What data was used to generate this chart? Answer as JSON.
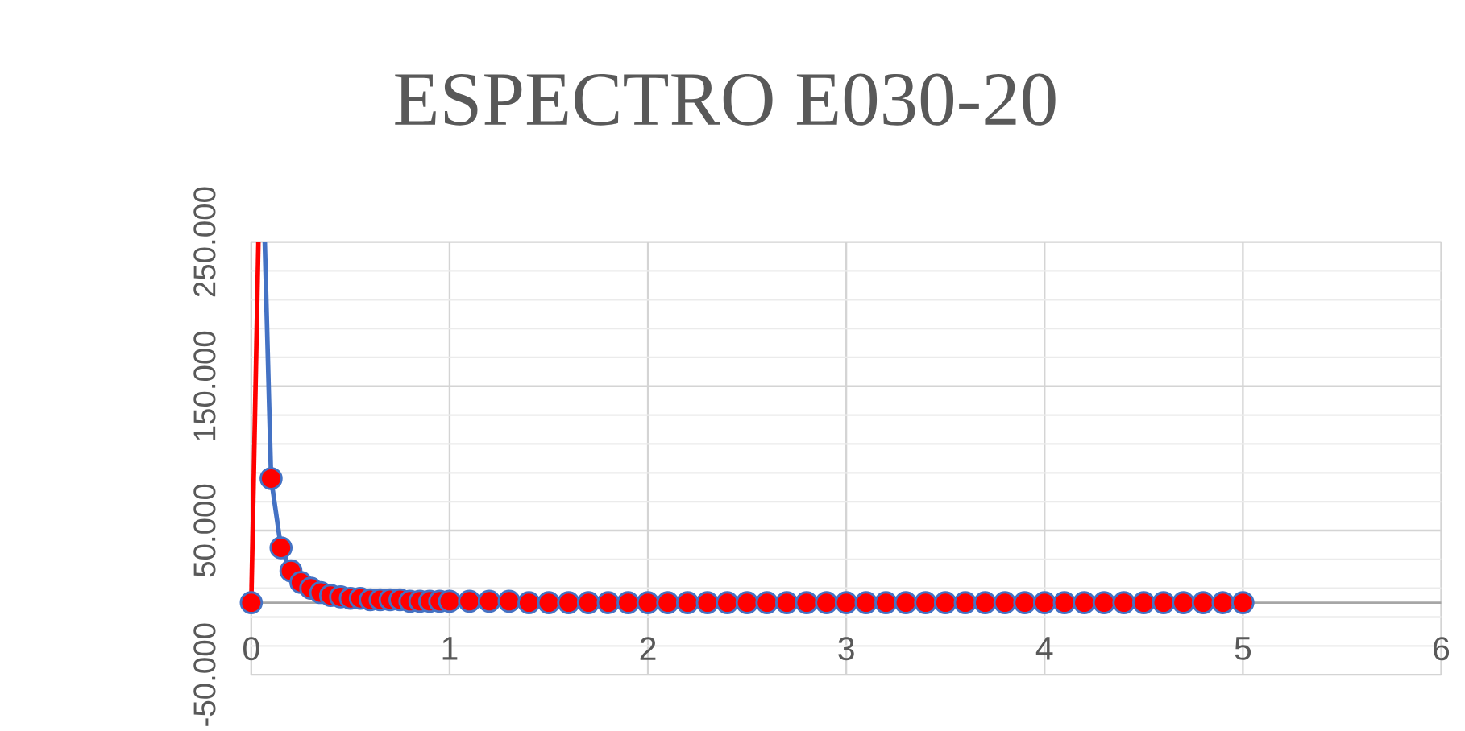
{
  "chart_data": {
    "type": "line",
    "title": "ESPECTRO E030-20",
    "xlim": [
      0,
      6
    ],
    "xticks": [
      0,
      1,
      2,
      3,
      4,
      5,
      6
    ],
    "ylim": [
      -50000,
      250000
    ],
    "yticks": [
      {
        "value": -50000,
        "label": "-50.000"
      },
      {
        "value": 50000,
        "label": "50.000"
      },
      {
        "value": 150000,
        "label": "150.000"
      },
      {
        "value": 250000,
        "label": "250.000"
      }
    ],
    "grid": true,
    "series": [
      {
        "color": "#ff0000",
        "x": [
          0,
          0.036
        ],
        "values": [
          0,
          250000
        ]
      },
      {
        "color": "#4472c4",
        "x": [
          0.068,
          0.1,
          0.15,
          0.2,
          0.25,
          0.3,
          0.35,
          0.4,
          0.45,
          0.5,
          0.55,
          0.6,
          0.65,
          0.7,
          0.75,
          0.8,
          0.85,
          0.9,
          0.95,
          1.0,
          1.1,
          1.2,
          1.3,
          1.4,
          1.5,
          1.6,
          1.7,
          1.8,
          1.9,
          2.0,
          2.1,
          2.2,
          2.3,
          2.4,
          2.5,
          2.6,
          2.7,
          2.8,
          2.9,
          3.0,
          3.1,
          3.2,
          3.3,
          3.4,
          3.5,
          3.6,
          3.7,
          3.8,
          3.9,
          4.0,
          4.1,
          4.2,
          4.3,
          4.4,
          4.5,
          4.6,
          4.7,
          4.8,
          4.9,
          5.0
        ],
        "values": [
          250000,
          86000,
          38000,
          22000,
          14000,
          10000,
          7000,
          5000,
          4000,
          3000,
          3000,
          2000,
          2000,
          2000,
          2000,
          1000,
          1000,
          1000,
          1000,
          1000,
          1000,
          1000,
          1000,
          0,
          0,
          0,
          0,
          0,
          0,
          0,
          0,
          0,
          0,
          0,
          0,
          0,
          0,
          0,
          0,
          0,
          0,
          0,
          0,
          0,
          0,
          0,
          0,
          0,
          0,
          0,
          0,
          0,
          0,
          0,
          0,
          0,
          0,
          0,
          0,
          0
        ]
      },
      {
        "type": "scatter",
        "color": "#ff0000",
        "marker": "circle",
        "x": [
          0,
          0.1,
          0.15,
          0.2,
          0.25,
          0.3,
          0.35,
          0.4,
          0.45,
          0.5,
          0.55,
          0.6,
          0.65,
          0.7,
          0.75,
          0.8,
          0.85,
          0.9,
          0.95,
          1.0,
          1.1,
          1.2,
          1.3,
          1.4,
          1.5,
          1.6,
          1.7,
          1.8,
          1.9,
          2.0,
          2.1,
          2.2,
          2.3,
          2.4,
          2.5,
          2.6,
          2.7,
          2.8,
          2.9,
          3.0,
          3.1,
          3.2,
          3.3,
          3.4,
          3.5,
          3.6,
          3.7,
          3.8,
          3.9,
          4.0,
          4.1,
          4.2,
          4.3,
          4.4,
          4.5,
          4.6,
          4.7,
          4.8,
          4.9,
          5.0
        ],
        "values": [
          0,
          86000,
          38000,
          22000,
          14000,
          10000,
          7000,
          5000,
          4000,
          3000,
          3000,
          2000,
          2000,
          2000,
          2000,
          1000,
          1000,
          1000,
          1000,
          1000,
          1000,
          1000,
          1000,
          0,
          0,
          0,
          0,
          0,
          0,
          0,
          0,
          0,
          0,
          0,
          0,
          0,
          0,
          0,
          0,
          0,
          0,
          0,
          0,
          0,
          0,
          0,
          0,
          0,
          0,
          0,
          0,
          0,
          0,
          0,
          0,
          0,
          0,
          0,
          0,
          0
        ]
      }
    ]
  }
}
